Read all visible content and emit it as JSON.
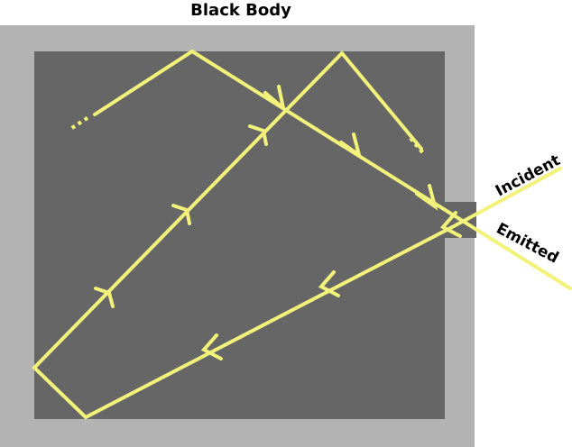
{
  "diagram": {
    "title": "Black Body",
    "labels": {
      "incident": "Incident",
      "emitted": "Emitted",
      "ellipsis_left": "...",
      "ellipsis_right": "..."
    },
    "colors": {
      "outer_wall": "#b3b3b3",
      "cavity": "#666666",
      "ray": "#f2f27a"
    }
  }
}
